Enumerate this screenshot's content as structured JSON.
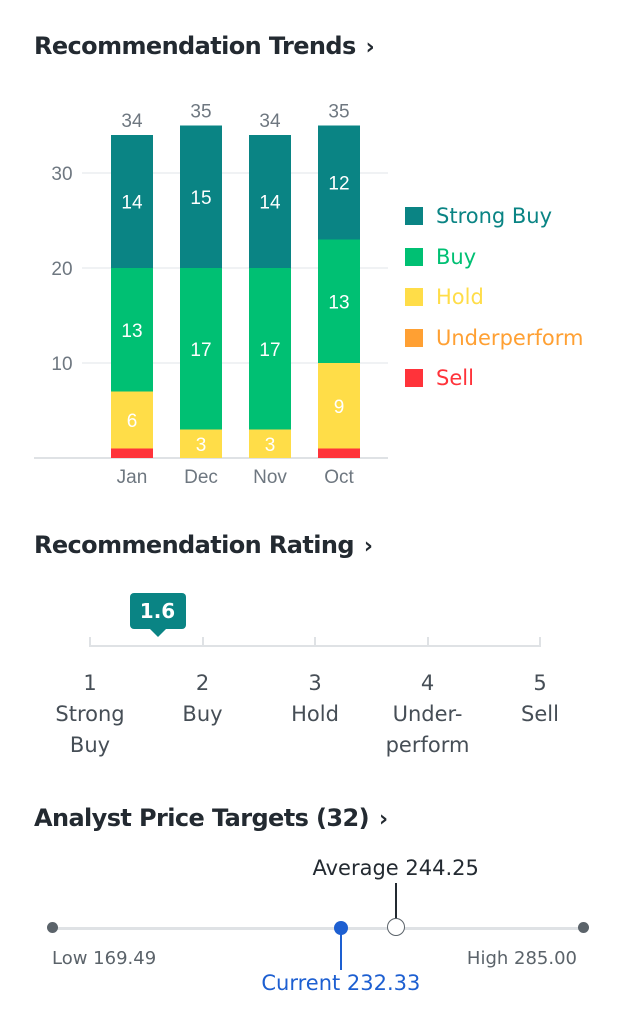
{
  "trends": {
    "title": "Recommendation Trends",
    "chevron": "›"
  },
  "rating": {
    "title": "Recommendation Rating",
    "chevron": "›",
    "value": 1.6,
    "value_label": "1.6",
    "scale": [
      {
        "num": "1",
        "lines": [
          "Strong",
          "Buy"
        ]
      },
      {
        "num": "2",
        "lines": [
          "Buy"
        ]
      },
      {
        "num": "3",
        "lines": [
          "Hold"
        ]
      },
      {
        "num": "4",
        "lines": [
          "Under-",
          "perform"
        ]
      },
      {
        "num": "5",
        "lines": [
          "Sell"
        ]
      }
    ]
  },
  "price_targets": {
    "title": "Analyst Price Targets (32)",
    "chevron": "›",
    "low": 169.49,
    "high": 285.0,
    "current": 232.33,
    "average": 244.25,
    "low_label": "Low 169.49",
    "high_label": "High 285.00",
    "current_label": "Current 232.33",
    "average_label": "Average 244.25"
  },
  "colors": {
    "strong_buy": "#0a8484",
    "buy": "#00c073",
    "hold": "#ffdd48",
    "underperform": "#ffa033",
    "sell": "#ff333a",
    "badge": "#0a8484",
    "current": "#1d5fd1"
  },
  "chart_data": {
    "type": "bar",
    "stacked": true,
    "categories": [
      "Jan",
      "Dec",
      "Nov",
      "Oct"
    ],
    "series": [
      {
        "name": "Strong Buy",
        "values": [
          14,
          15,
          14,
          12
        ],
        "color": "#0a8484",
        "text_color": "#0a8484"
      },
      {
        "name": "Buy",
        "values": [
          13,
          17,
          17,
          13
        ],
        "color": "#00c073",
        "text_color": "#00c073"
      },
      {
        "name": "Hold",
        "values": [
          6,
          3,
          3,
          9
        ],
        "color": "#ffdd48",
        "text_color": "#ffdd48"
      },
      {
        "name": "Underperform",
        "values": [
          0,
          0,
          0,
          0
        ],
        "color": "#ffa033",
        "text_color": "#ffa033"
      },
      {
        "name": "Sell",
        "values": [
          1,
          0,
          0,
          1
        ],
        "color": "#ff333a",
        "text_color": "#ff333a"
      }
    ],
    "totals": [
      34,
      35,
      34,
      35
    ],
    "yticks": [
      10,
      20,
      30
    ],
    "ylim": [
      0,
      35
    ],
    "grid": true,
    "legend_position": "right"
  }
}
